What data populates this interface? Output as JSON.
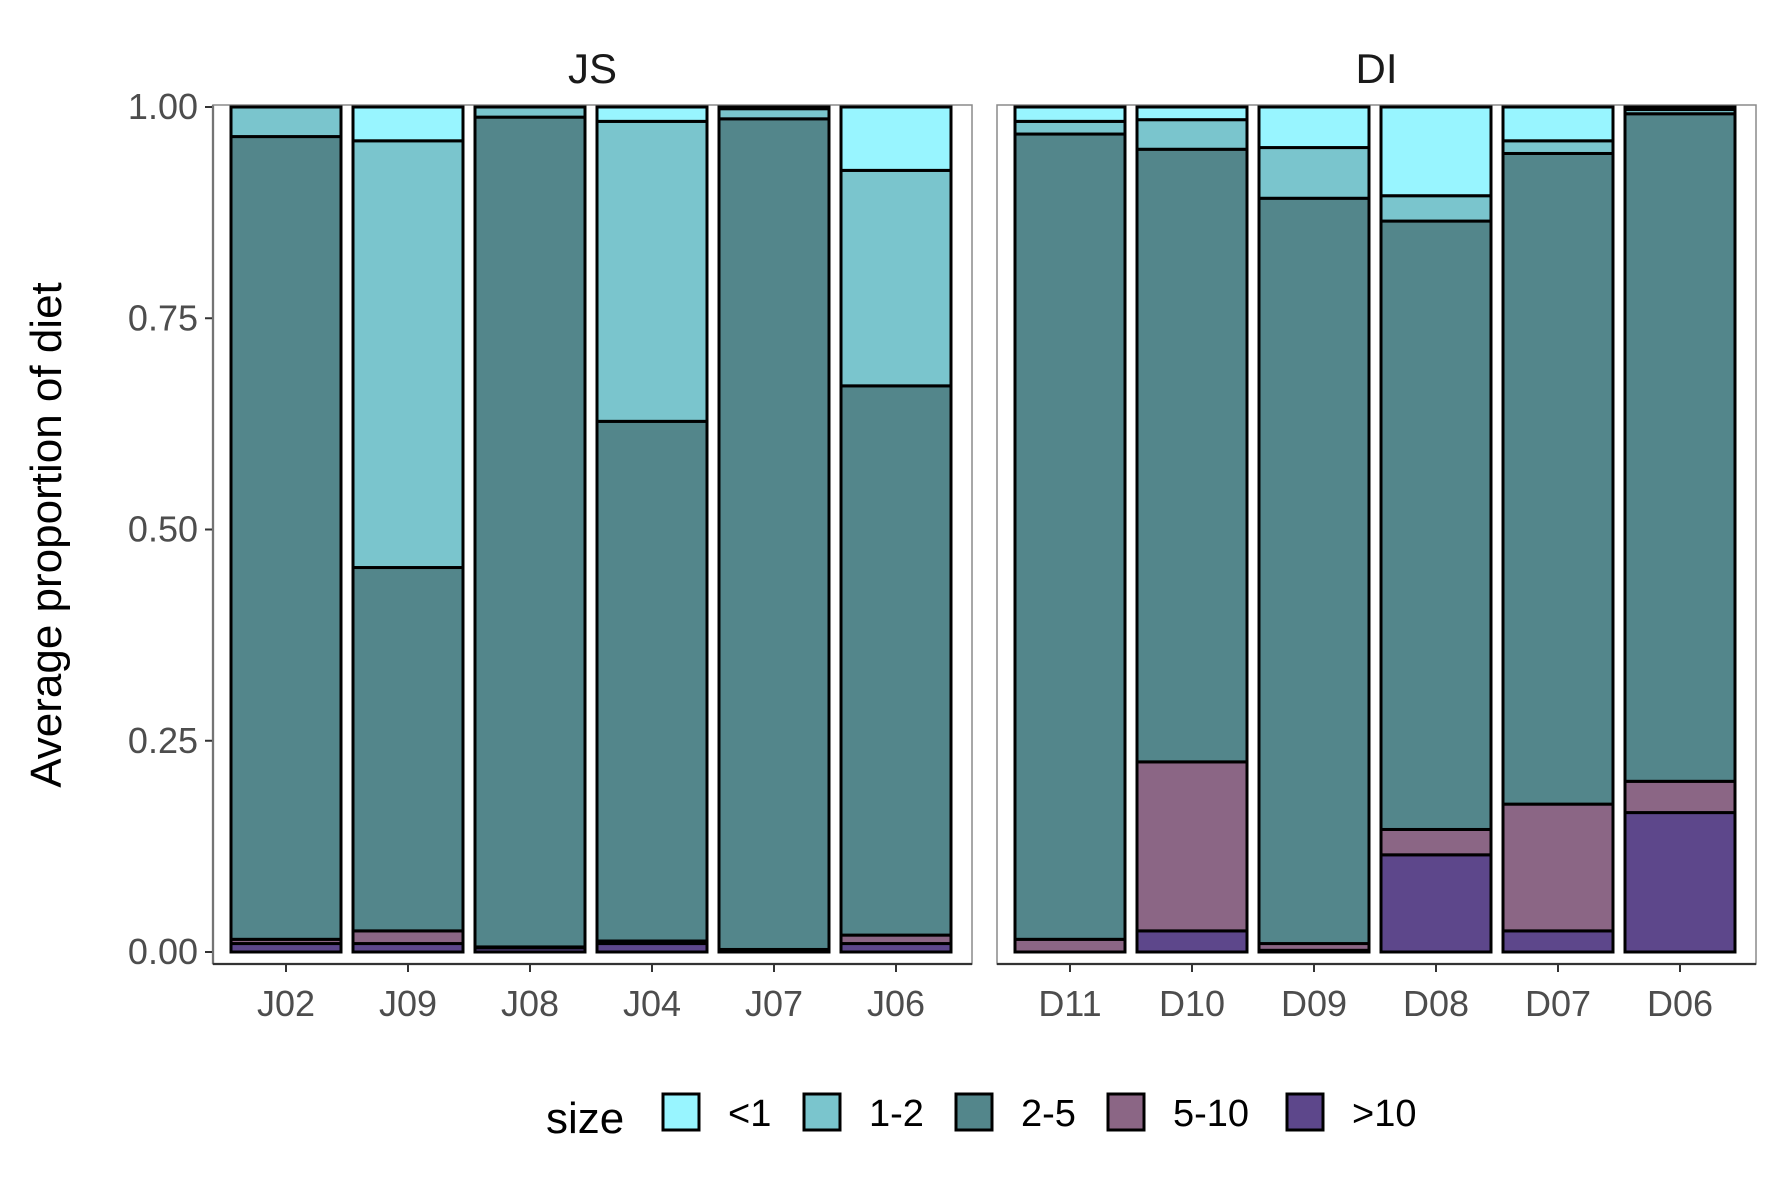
{
  "chart_data": {
    "type": "bar",
    "stacked": true,
    "ylabel": "Average proportion of diet",
    "xlabel": "",
    "ylim": [
      0,
      1
    ],
    "y_ticks": [
      "0.00",
      "0.25",
      "0.50",
      "0.75",
      "1.00"
    ],
    "grid": false,
    "legend_position": "bottom",
    "legend_title": "size",
    "series": [
      {
        "name": "<1",
        "color": "#98F5FF"
      },
      {
        "name": "1-2",
        "color": "#7AC5CD"
      },
      {
        "name": "2-5",
        "color": "#53868B"
      },
      {
        "name": "5-10",
        "color": "#8B6685"
      },
      {
        "name": ">10",
        "color": "#5D478B"
      }
    ],
    "panels": [
      {
        "title": "JS",
        "categories": [
          "J02",
          "J09",
          "J08",
          "J04",
          "J07",
          "J06"
        ],
        "values": {
          "<1": [
            0.0,
            0.04,
            0.0,
            0.017,
            0.002,
            0.075
          ],
          "1-2": [
            0.035,
            0.505,
            0.012,
            0.355,
            0.012,
            0.255
          ],
          "2-5": [
            0.95,
            0.43,
            0.982,
            0.615,
            0.983,
            0.65
          ],
          "5-10": [
            0.005,
            0.015,
            0.001,
            0.003,
            0.001,
            0.01
          ],
          ">10": [
            0.01,
            0.01,
            0.005,
            0.01,
            0.002,
            0.01
          ]
        }
      },
      {
        "title": "DI",
        "categories": [
          "D11",
          "D10",
          "D09",
          "D08",
          "D07",
          "D06"
        ],
        "values": {
          "<1": [
            0.017,
            0.015,
            0.048,
            0.105,
            0.04,
            0.003
          ],
          "1-2": [
            0.015,
            0.035,
            0.06,
            0.03,
            0.015,
            0.005
          ],
          "2-5": [
            0.953,
            0.725,
            0.882,
            0.72,
            0.77,
            0.79
          ],
          "5-10": [
            0.015,
            0.2,
            0.008,
            0.03,
            0.15,
            0.037
          ],
          ">10": [
            0.0,
            0.025,
            0.002,
            0.115,
            0.025,
            0.165
          ]
        }
      }
    ]
  }
}
